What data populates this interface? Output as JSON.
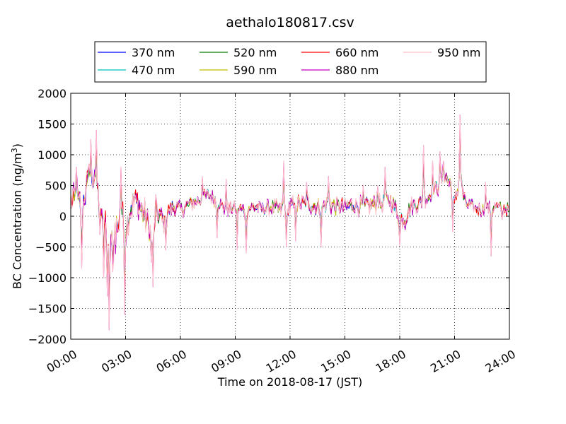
{
  "chart_data": {
    "type": "line",
    "title": "aethalo180817.csv",
    "xlabel": "Time on 2018-08-17 (JST)",
    "ylabel": "BC Concentration (ng/m",
    "ylabel_sup": "3",
    "ylabel_close": ")",
    "xlim": [
      "00:00",
      "24:00"
    ],
    "ylim": [
      -2000,
      2000
    ],
    "xticks": [
      "00:00",
      "03:00",
      "06:00",
      "09:00",
      "12:00",
      "15:00",
      "18:00",
      "21:00",
      "24:00"
    ],
    "yticks": [
      "2000",
      "1500",
      "1000",
      "500",
      "0",
      "−500",
      "−1000",
      "−1500",
      "−2000"
    ],
    "grid": true,
    "legend_position": "top-center, outside plot",
    "series": [
      {
        "name": "370 nm",
        "color": "#0000ff",
        "amp": 0.55
      },
      {
        "name": "470 nm",
        "color": "#00bfbf",
        "amp": 0.6
      },
      {
        "name": "520 nm",
        "color": "#008000",
        "amp": 0.62
      },
      {
        "name": "590 nm",
        "color": "#bfbf00",
        "amp": 0.7
      },
      {
        "name": "660 nm",
        "color": "#ff0000",
        "amp": 0.75
      },
      {
        "name": "880 nm",
        "color": "#bf00bf",
        "amp": 1.0
      },
      {
        "name": "950 nm",
        "color": "#ffc0cb",
        "amp": 1.0
      }
    ],
    "baseline": [
      [
        0.0,
        200
      ],
      [
        0.3,
        300
      ],
      [
        0.6,
        150
      ],
      [
        0.9,
        500
      ],
      [
        1.2,
        600
      ],
      [
        1.5,
        350
      ],
      [
        1.8,
        0
      ],
      [
        2.1,
        -500
      ],
      [
        2.4,
        -300
      ],
      [
        2.7,
        100
      ],
      [
        3.0,
        -200
      ],
      [
        3.3,
        150
      ],
      [
        3.6,
        250
      ],
      [
        3.9,
        100
      ],
      [
        4.2,
        -100
      ],
      [
        4.5,
        -200
      ],
      [
        4.8,
        50
      ],
      [
        5.1,
        -100
      ],
      [
        5.4,
        100
      ],
      [
        5.7,
        150
      ],
      [
        6.0,
        100
      ],
      [
        6.5,
        200
      ],
      [
        7.0,
        250
      ],
      [
        7.5,
        350
      ],
      [
        8.0,
        250
      ],
      [
        8.5,
        100
      ],
      [
        9.0,
        150
      ],
      [
        9.5,
        100
      ],
      [
        10.0,
        150
      ],
      [
        10.5,
        120
      ],
      [
        11.0,
        150
      ],
      [
        11.5,
        100
      ],
      [
        12.0,
        150
      ],
      [
        12.5,
        200
      ],
      [
        13.0,
        200
      ],
      [
        13.5,
        150
      ],
      [
        14.0,
        200
      ],
      [
        14.5,
        150
      ],
      [
        15.0,
        150
      ],
      [
        15.5,
        200
      ],
      [
        16.0,
        150
      ],
      [
        16.5,
        200
      ],
      [
        17.0,
        200
      ],
      [
        17.5,
        250
      ],
      [
        18.0,
        0
      ],
      [
        18.3,
        -50
      ],
      [
        18.6,
        150
      ],
      [
        19.0,
        200
      ],
      [
        19.5,
        300
      ],
      [
        20.0,
        450
      ],
      [
        20.5,
        650
      ],
      [
        20.8,
        500
      ],
      [
        21.0,
        200
      ],
      [
        21.3,
        600
      ],
      [
        21.6,
        200
      ],
      [
        22.0,
        150
      ],
      [
        22.5,
        100
      ],
      [
        23.0,
        150
      ],
      [
        23.5,
        150
      ],
      [
        24.0,
        100
      ]
    ],
    "noise_sigma": [
      [
        0.0,
        300
      ],
      [
        1.5,
        300
      ],
      [
        2.0,
        500
      ],
      [
        2.5,
        400
      ],
      [
        3.0,
        300
      ],
      [
        4.5,
        300
      ],
      [
        5.0,
        220
      ],
      [
        6.0,
        150
      ],
      [
        9.0,
        130
      ],
      [
        11.0,
        150
      ],
      [
        12.0,
        180
      ],
      [
        17.5,
        170
      ],
      [
        18.0,
        200
      ],
      [
        19.0,
        160
      ],
      [
        20.5,
        180
      ],
      [
        21.5,
        170
      ],
      [
        22.0,
        130
      ],
      [
        24.0,
        130
      ]
    ],
    "spikes": [
      {
        "x": 0.3,
        "y": 800
      },
      {
        "x": 0.6,
        "y": -850
      },
      {
        "x": 1.0,
        "y": 850
      },
      {
        "x": 1.1,
        "y": 1250
      },
      {
        "x": 1.4,
        "y": 1400
      },
      {
        "x": 1.6,
        "y": -300
      },
      {
        "x": 1.8,
        "y": -1000
      },
      {
        "x": 2.0,
        "y": -1300
      },
      {
        "x": 2.1,
        "y": -1850
      },
      {
        "x": 2.3,
        "y": -900
      },
      {
        "x": 2.6,
        "y": -250
      },
      {
        "x": 2.75,
        "y": 800
      },
      {
        "x": 2.95,
        "y": -1600
      },
      {
        "x": 3.5,
        "y": 350
      },
      {
        "x": 4.4,
        "y": -750
      },
      {
        "x": 4.5,
        "y": -1150
      },
      {
        "x": 4.65,
        "y": 350
      },
      {
        "x": 5.2,
        "y": -550
      },
      {
        "x": 7.2,
        "y": 650
      },
      {
        "x": 8.0,
        "y": -350
      },
      {
        "x": 8.5,
        "y": 600
      },
      {
        "x": 9.1,
        "y": -550
      },
      {
        "x": 9.6,
        "y": -600
      },
      {
        "x": 11.65,
        "y": 900
      },
      {
        "x": 11.8,
        "y": -500
      },
      {
        "x": 12.3,
        "y": -400
      },
      {
        "x": 12.9,
        "y": 550
      },
      {
        "x": 13.7,
        "y": -500
      },
      {
        "x": 14.1,
        "y": 650
      },
      {
        "x": 16.0,
        "y": 500
      },
      {
        "x": 16.8,
        "y": 500
      },
      {
        "x": 17.2,
        "y": 800
      },
      {
        "x": 18.0,
        "y": -480
      },
      {
        "x": 19.3,
        "y": 1150
      },
      {
        "x": 19.8,
        "y": 900
      },
      {
        "x": 20.2,
        "y": 1050
      },
      {
        "x": 20.4,
        "y": 900
      },
      {
        "x": 20.9,
        "y": -250
      },
      {
        "x": 21.3,
        "y": 1650
      },
      {
        "x": 22.1,
        "y": 150
      },
      {
        "x": 22.7,
        "y": 550
      },
      {
        "x": 23.0,
        "y": -650
      },
      {
        "x": 23.6,
        "y": -50
      }
    ]
  }
}
